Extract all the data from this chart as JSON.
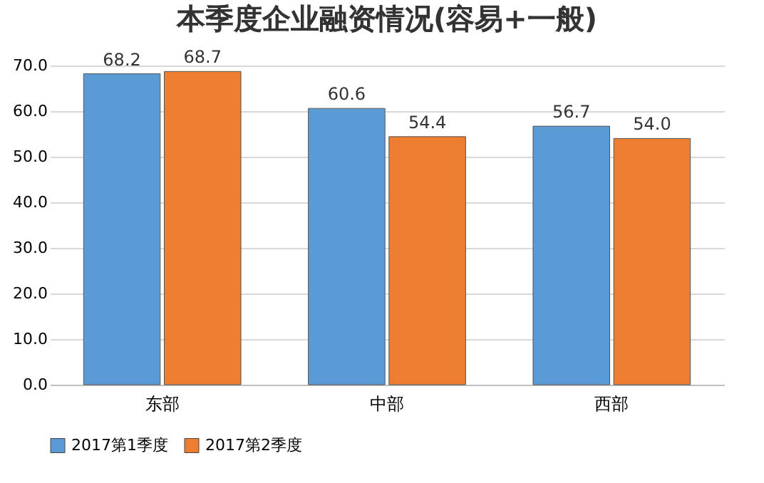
{
  "chart_data": {
    "type": "bar",
    "title": "本季度企业融资情况(容易+一般)",
    "categories": [
      "东部",
      "中部",
      "西部"
    ],
    "series": [
      {
        "name": "2017第1季度",
        "color": "#5b9bd5",
        "values": [
          68.2,
          60.6,
          56.7
        ],
        "value_labels": [
          "68.2",
          "60.6",
          "56.7"
        ]
      },
      {
        "name": "2017第2季度",
        "color": "#ed7d31",
        "values": [
          68.7,
          54.4,
          54.0
        ],
        "value_labels": [
          "68.7",
          "54.4",
          "54.0"
        ]
      }
    ],
    "ylim": [
      0,
      70
    ],
    "yticks": [
      {
        "value": 0,
        "label": "0.0"
      },
      {
        "value": 10,
        "label": "10.0"
      },
      {
        "value": 20,
        "label": "20.0"
      },
      {
        "value": 30,
        "label": "30.0"
      },
      {
        "value": 40,
        "label": "40.0"
      },
      {
        "value": 50,
        "label": "50.0"
      },
      {
        "value": 60,
        "label": "60.0"
      },
      {
        "value": 70,
        "label": "70.0"
      }
    ],
    "grid": true,
    "legend": "bottom"
  }
}
